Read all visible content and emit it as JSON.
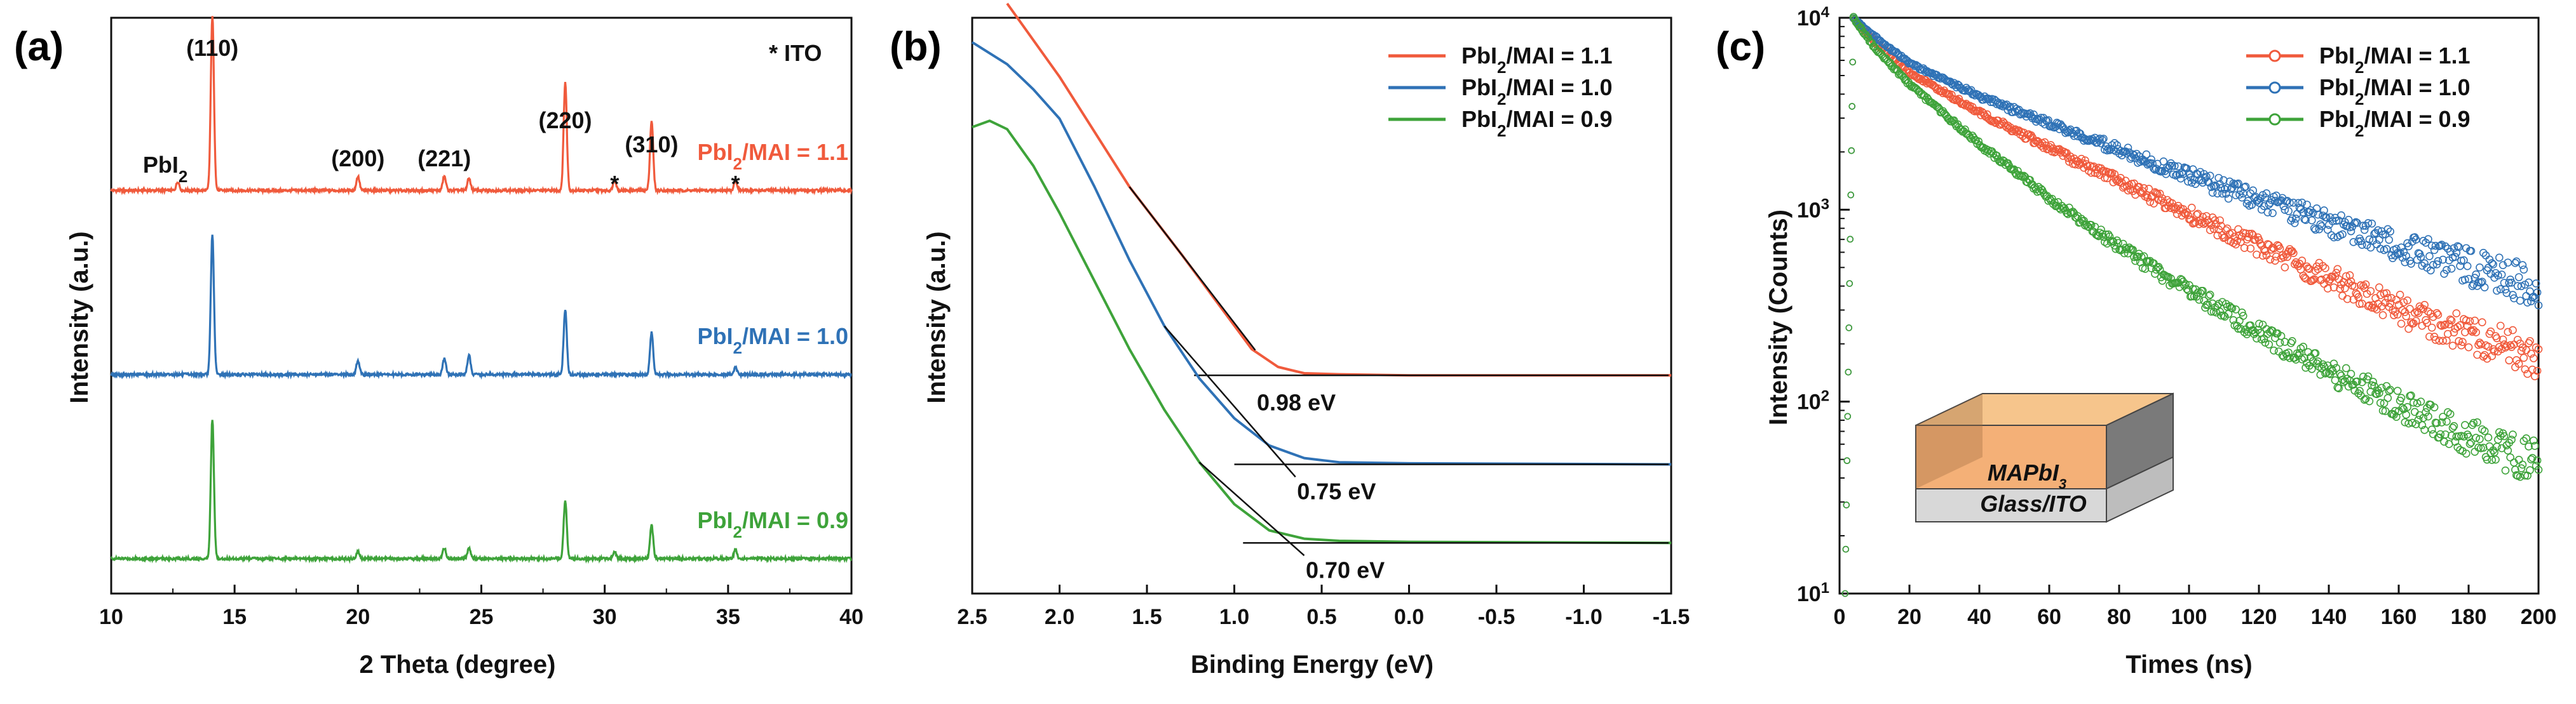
{
  "chart_data": [
    {
      "panel": "(a)",
      "type": "line",
      "xlabel": "2 Theta (degree)",
      "ylabel": "Intensity (a.u.)",
      "xlim": [
        10,
        40
      ],
      "xticks": [
        10,
        15,
        20,
        25,
        30,
        35,
        40
      ],
      "xtick_labels": [
        "10",
        "15",
        "20",
        "25",
        "30",
        "35",
        "40"
      ],
      "legend_note": "* ITO",
      "peak_labels": [
        {
          "text": "(110)",
          "x": 14.1
        },
        {
          "text": "(200)",
          "x": 20.0
        },
        {
          "text": "(221)",
          "x": 23.5
        },
        {
          "text": "(220)",
          "x": 28.4
        },
        {
          "text": "(310)",
          "x": 31.9
        }
      ],
      "impurity_label": {
        "base": "PbI",
        "sub": "2",
        "x": 12.7
      },
      "ito_markers": [
        {
          "text": "*",
          "x": 30.4
        },
        {
          "text": "*",
          "x": 35.3
        }
      ],
      "series": [
        {
          "name": "PbI2/MAI = 1.1",
          "label_base": "PbI",
          "label_sub": "2",
          "label_rest": "/MAI = 1.1",
          "color": "#f05a3c",
          "offset": 2.0,
          "peaks": [
            [
              12.7,
              0.05
            ],
            [
              14.1,
              1.0
            ],
            [
              20.0,
              0.08
            ],
            [
              23.5,
              0.08
            ],
            [
              24.5,
              0.07
            ],
            [
              28.4,
              0.62
            ],
            [
              30.4,
              0.06
            ],
            [
              31.9,
              0.4
            ],
            [
              35.3,
              0.06
            ]
          ]
        },
        {
          "name": "PbI2/MAI = 1.0",
          "label_base": "PbI",
          "label_sub": "2",
          "label_rest": "/MAI = 1.0",
          "color": "#2f72b6",
          "offset": 1.0,
          "peaks": [
            [
              14.1,
              0.8
            ],
            [
              20.0,
              0.08
            ],
            [
              23.5,
              0.09
            ],
            [
              24.5,
              0.11
            ],
            [
              28.4,
              0.37
            ],
            [
              31.9,
              0.24
            ],
            [
              35.3,
              0.04
            ]
          ]
        },
        {
          "name": "PbI2/MAI = 0.9",
          "label_base": "PbI",
          "label_sub": "2",
          "label_rest": "/MAI = 0.9",
          "color": "#3ea33a",
          "offset": 0.0,
          "peaks": [
            [
              14.1,
              0.8
            ],
            [
              20.0,
              0.04
            ],
            [
              23.5,
              0.06
            ],
            [
              24.5,
              0.06
            ],
            [
              28.4,
              0.33
            ],
            [
              30.4,
              0.04
            ],
            [
              31.9,
              0.19
            ],
            [
              35.3,
              0.05
            ]
          ]
        }
      ]
    },
    {
      "panel": "(b)",
      "type": "line",
      "xlabel": "Binding Energy (eV)",
      "ylabel": "Intensity (a.u.)",
      "xlim": [
        2.5,
        -1.5
      ],
      "xticks": [
        2.5,
        2.0,
        1.5,
        1.0,
        0.5,
        0.0,
        -0.5,
        -1.0,
        -1.5
      ],
      "xtick_labels": [
        "2.5",
        "2.0",
        "1.5",
        "1.0",
        "0.5",
        "0.0",
        "-0.5",
        "-1.0",
        "-1.5"
      ],
      "legend_position": "top-right",
      "series": [
        {
          "name": "PbI2/MAI = 1.1",
          "label_base": "PbI",
          "label_sub": "2",
          "label_rest": "/MAI = 1.1",
          "color": "#f05a3c",
          "baseline": 1.75,
          "cutoff": 0.98,
          "x": [
            2.3,
            2.0,
            1.6,
            1.3,
            1.1,
            0.9,
            0.75,
            0.6,
            0.4,
            0.0,
            -1.5
          ],
          "y": [
            5.3,
            4.6,
            3.55,
            2.9,
            2.45,
            2.0,
            1.83,
            1.77,
            1.76,
            1.75,
            1.75
          ]
        },
        {
          "name": "PbI2/MAI = 1.0",
          "label_base": "PbI",
          "label_sub": "2",
          "label_rest": "/MAI = 1.0",
          "color": "#2f72b6",
          "baseline": 0.9,
          "cutoff": 0.75,
          "x": [
            2.5,
            2.3,
            2.15,
            2.0,
            1.8,
            1.6,
            1.4,
            1.2,
            1.0,
            0.8,
            0.6,
            0.4,
            0.0,
            -1.5
          ],
          "y": [
            4.93,
            4.72,
            4.48,
            4.2,
            3.55,
            2.85,
            2.22,
            1.72,
            1.34,
            1.08,
            0.96,
            0.92,
            0.91,
            0.9
          ]
        },
        {
          "name": "PbI2/MAI = 0.9",
          "label_base": "PbI",
          "label_sub": "2",
          "label_rest": "/MAI = 0.9",
          "color": "#3ea33a",
          "baseline": 0.15,
          "cutoff": 0.7,
          "x": [
            2.5,
            2.4,
            2.3,
            2.15,
            2.0,
            1.8,
            1.6,
            1.4,
            1.2,
            1.0,
            0.8,
            0.6,
            0.4,
            0.0,
            -1.5
          ],
          "y": [
            4.12,
            4.18,
            4.1,
            3.75,
            3.3,
            2.65,
            2.0,
            1.42,
            0.92,
            0.52,
            0.27,
            0.19,
            0.17,
            0.16,
            0.15
          ]
        }
      ],
      "annotations": [
        {
          "text": "0.98 eV",
          "series": 0
        },
        {
          "text": "0.75 eV",
          "series": 1
        },
        {
          "text": "0.70 eV",
          "series": 2
        }
      ]
    },
    {
      "panel": "(c)",
      "type": "scatter",
      "xlabel": "Times (ns)",
      "ylabel": "Intensity (Counts)",
      "xlim": [
        0,
        200
      ],
      "ylim_log": [
        10,
        10000
      ],
      "xticks": [
        0,
        20,
        40,
        60,
        80,
        100,
        120,
        140,
        160,
        180,
        200
      ],
      "xtick_labels": [
        "0",
        "20",
        "40",
        "60",
        "80",
        "100",
        "120",
        "140",
        "160",
        "180",
        "200"
      ],
      "yticks": [
        {
          "value": 10,
          "base": "10",
          "exp": "1"
        },
        {
          "value": 100,
          "base": "10",
          "exp": "2"
        },
        {
          "value": 1000,
          "base": "10",
          "exp": "3"
        },
        {
          "value": 10000,
          "base": "10",
          "exp": "4"
        }
      ],
      "legend_position": "top-right",
      "series": [
        {
          "name": "PbI2/MAI = 1.1",
          "label_base": "PbI",
          "label_sub": "2",
          "label_rest": "/MAI = 1.1",
          "color": "#f05a3c",
          "x": [
            4,
            10,
            20,
            40,
            60,
            80,
            100,
            120,
            140,
            160,
            180,
            200
          ],
          "y": [
            10000,
            7500,
            5200,
            3200,
            2100,
            1400,
            950,
            650,
            440,
            300,
            220,
            170
          ]
        },
        {
          "name": "PbI2/MAI = 1.0",
          "label_base": "PbI",
          "label_sub": "2",
          "label_rest": "/MAI = 1.0",
          "color": "#2f72b6",
          "x": [
            4,
            10,
            20,
            40,
            60,
            80,
            100,
            120,
            140,
            160,
            180,
            200
          ],
          "y": [
            10000,
            8000,
            5800,
            3900,
            2800,
            2050,
            1500,
            1120,
            850,
            650,
            500,
            400
          ]
        },
        {
          "name": "PbI2/MAI = 0.9",
          "label_base": "PbI",
          "label_sub": "2",
          "label_rest": "/MAI = 0.9",
          "color": "#3ea33a",
          "x": [
            4,
            10,
            20,
            40,
            60,
            80,
            100,
            120,
            140,
            160,
            180,
            200
          ],
          "y": [
            10000,
            7000,
            4500,
            2200,
            1150,
            640,
            380,
            230,
            145,
            95,
            65,
            48
          ]
        }
      ],
      "inset": {
        "top_layer": {
          "base": "MAPbI",
          "sub": "3"
        },
        "bottom_layer": "Glass/ITO"
      }
    }
  ]
}
